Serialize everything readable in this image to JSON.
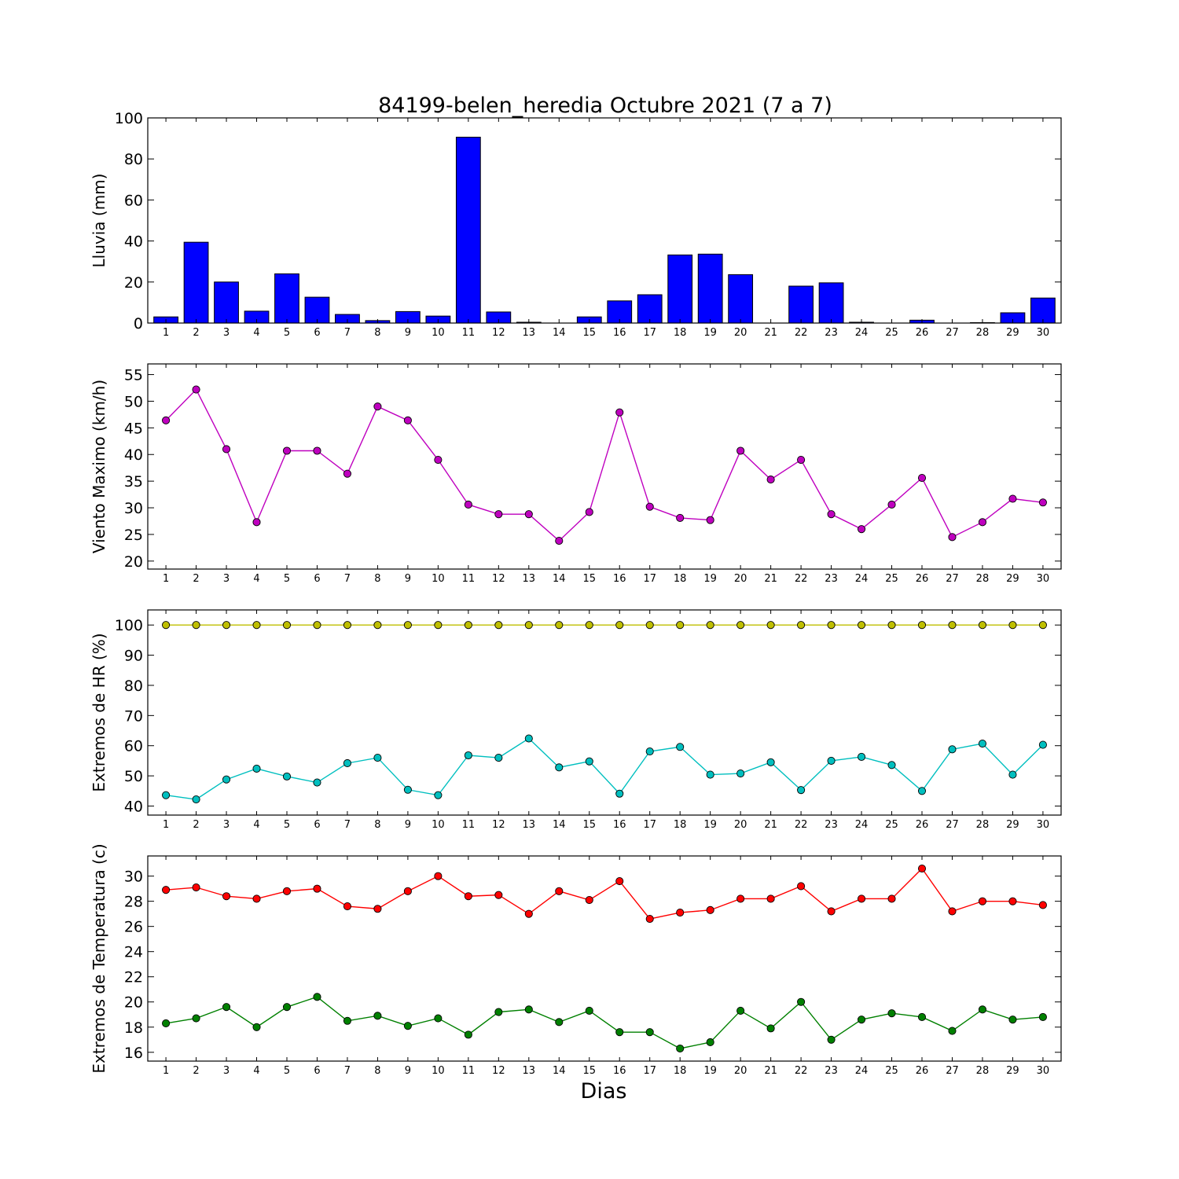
{
  "figure": {
    "title": "84199-belen_heredia Octubre 2021  (7 a 7)",
    "xlabel": "Dias"
  },
  "chart_data": [
    {
      "type": "bar",
      "ylabel": "Lluvia (mm)",
      "ylim": [
        0,
        100
      ],
      "yticks": [
        0,
        20,
        40,
        60,
        80,
        100
      ],
      "categories": [
        1,
        2,
        3,
        4,
        5,
        6,
        7,
        8,
        9,
        10,
        11,
        12,
        13,
        14,
        15,
        16,
        17,
        18,
        19,
        20,
        21,
        22,
        23,
        24,
        25,
        26,
        27,
        28,
        29,
        30
      ],
      "values": [
        3.0,
        39.4,
        20.0,
        5.8,
        24.0,
        12.6,
        4.2,
        1.2,
        5.6,
        3.4,
        90.6,
        5.4,
        0.4,
        0.0,
        3.0,
        10.8,
        13.8,
        33.2,
        33.6,
        23.6,
        0.0,
        18.0,
        19.6,
        0.4,
        0.0,
        1.4,
        0.0,
        0.2,
        5.0,
        12.2
      ],
      "colors": {
        "bar": "#0000ff"
      }
    },
    {
      "type": "line",
      "ylabel": "Viento Maximo (km/h)",
      "ylim": [
        18.5,
        57
      ],
      "yticks": [
        20,
        25,
        30,
        35,
        40,
        45,
        50,
        55
      ],
      "categories": [
        1,
        2,
        3,
        4,
        5,
        6,
        7,
        8,
        9,
        10,
        11,
        12,
        13,
        14,
        15,
        16,
        17,
        18,
        19,
        20,
        21,
        22,
        23,
        24,
        25,
        26,
        27,
        28,
        29,
        30
      ],
      "series": [
        {
          "values": [
            46.4,
            52.2,
            41.0,
            27.3,
            40.7,
            40.7,
            36.4,
            49.0,
            46.4,
            39.0,
            30.6,
            28.8,
            28.8,
            23.8,
            29.2,
            47.9,
            30.2,
            28.1,
            27.7,
            40.7,
            35.3,
            39.0,
            28.8,
            26.0,
            30.6,
            35.6,
            24.5,
            27.3,
            31.7,
            31.0
          ],
          "color": "#bf00bf"
        }
      ]
    },
    {
      "type": "line",
      "ylabel": "Extremos de HR (%)",
      "ylim": [
        37,
        105
      ],
      "yticks": [
        40,
        50,
        60,
        70,
        80,
        90,
        100
      ],
      "categories": [
        1,
        2,
        3,
        4,
        5,
        6,
        7,
        8,
        9,
        10,
        11,
        12,
        13,
        14,
        15,
        16,
        17,
        18,
        19,
        20,
        21,
        22,
        23,
        24,
        25,
        26,
        27,
        28,
        29,
        30
      ],
      "series": [
        {
          "values": [
            100,
            100,
            100,
            100,
            100,
            100,
            100,
            100,
            100,
            100,
            100,
            100,
            100,
            100,
            100,
            100,
            100,
            100,
            100,
            100,
            100,
            100,
            100,
            100,
            100,
            100,
            100,
            100,
            100,
            100
          ],
          "color": "#bfbf00"
        },
        {
          "values": [
            43.6,
            42.2,
            48.8,
            52.4,
            49.8,
            47.8,
            54.2,
            56.0,
            45.4,
            43.6,
            56.8,
            56.0,
            62.4,
            52.8,
            54.8,
            44.1,
            58.1,
            59.6,
            50.4,
            50.8,
            54.5,
            45.3,
            55.0,
            56.3,
            53.6,
            45.0,
            58.8,
            60.7,
            50.4,
            60.3
          ],
          "color": "#00bfbf"
        }
      ]
    },
    {
      "type": "line",
      "ylabel": "Extremos de Temperatura (c)",
      "ylim": [
        15.3,
        31.6
      ],
      "yticks": [
        16,
        18,
        20,
        22,
        24,
        26,
        28,
        30
      ],
      "categories": [
        1,
        2,
        3,
        4,
        5,
        6,
        7,
        8,
        9,
        10,
        11,
        12,
        13,
        14,
        15,
        16,
        17,
        18,
        19,
        20,
        21,
        22,
        23,
        24,
        25,
        26,
        27,
        28,
        29,
        30
      ],
      "series": [
        {
          "values": [
            28.9,
            29.1,
            28.4,
            28.2,
            28.8,
            29.0,
            27.6,
            27.4,
            28.8,
            30.0,
            28.4,
            28.5,
            27.0,
            28.8,
            28.1,
            29.6,
            26.6,
            27.1,
            27.3,
            28.2,
            28.2,
            29.2,
            27.2,
            28.2,
            28.2,
            30.6,
            27.2,
            28.0,
            28.0,
            27.7
          ],
          "color": "#ff0000"
        },
        {
          "values": [
            18.3,
            18.7,
            19.6,
            18.0,
            19.6,
            20.4,
            18.5,
            18.9,
            18.1,
            18.7,
            17.4,
            19.2,
            19.4,
            18.4,
            19.3,
            17.6,
            17.6,
            16.3,
            16.8,
            19.3,
            17.9,
            20.0,
            17.0,
            18.6,
            19.1,
            18.8,
            17.7,
            19.4,
            18.6,
            18.8
          ],
          "color": "#008000"
        }
      ]
    }
  ]
}
